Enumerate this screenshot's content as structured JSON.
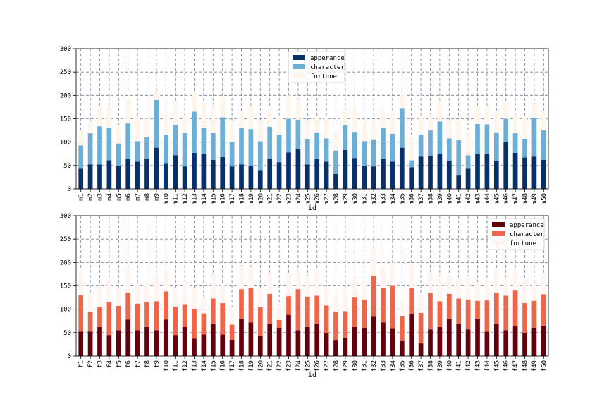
{
  "chart_data": [
    {
      "type": "bar",
      "stacked": true,
      "xlabel": "id",
      "ylim": [
        0,
        300
      ],
      "yticks": [
        0,
        50,
        100,
        150,
        200,
        250,
        300
      ],
      "grid": true,
      "legend_position": "top-center",
      "categories": [
        "m1",
        "m2",
        "m3",
        "m4",
        "m5",
        "m6",
        "m7",
        "m8",
        "m9",
        "m10",
        "m11",
        "m12",
        "m13",
        "m14",
        "m15",
        "m16",
        "m17",
        "m18",
        "m19",
        "m20",
        "m21",
        "m22",
        "m23",
        "m24",
        "m25",
        "m26",
        "m27",
        "m28",
        "m29",
        "m30",
        "m31",
        "m32",
        "m33",
        "m34",
        "m35",
        "m36",
        "m37",
        "m38",
        "m39",
        "m40",
        "m41",
        "m42",
        "m43",
        "m44",
        "m45",
        "m46",
        "m47",
        "m48",
        "m49",
        "m50"
      ],
      "series": [
        {
          "name": "apperance",
          "color": "#08306b",
          "values": [
            43,
            52,
            52,
            61,
            50,
            65,
            58,
            65,
            88,
            55,
            72,
            48,
            77,
            75,
            62,
            68,
            48,
            52,
            50,
            40,
            65,
            57,
            78,
            86,
            52,
            65,
            58,
            32,
            83,
            66,
            49,
            48,
            65,
            58,
            88,
            46,
            69,
            71,
            75,
            60,
            30,
            43,
            75,
            75,
            59,
            100,
            77,
            67,
            69,
            62
          ]
        },
        {
          "name": "character",
          "color": "#6baed6",
          "values": [
            50,
            67,
            82,
            70,
            47,
            75,
            44,
            45,
            102,
            61,
            65,
            72,
            88,
            55,
            58,
            85,
            53,
            78,
            78,
            62,
            68,
            59,
            72,
            62,
            55,
            56,
            50,
            50,
            53,
            56,
            53,
            58,
            65,
            60,
            85,
            15,
            47,
            54,
            69,
            48,
            74,
            29,
            64,
            63,
            62,
            50,
            42,
            40,
            83,
            63
          ]
        },
        {
          "name": "fortune",
          "color": "#fff5eb",
          "values": [
            30,
            25,
            45,
            40,
            35,
            50,
            55,
            40,
            20,
            45,
            50,
            35,
            40,
            55,
            60,
            45,
            40,
            35,
            50,
            45,
            40,
            35,
            50,
            45,
            40,
            35,
            45,
            40,
            35,
            50,
            45,
            40,
            35,
            45,
            30,
            50,
            40,
            35,
            45,
            40,
            45,
            50,
            35,
            40,
            45,
            35,
            40,
            45,
            30,
            40
          ]
        }
      ]
    },
    {
      "type": "bar",
      "stacked": true,
      "xlabel": "id",
      "ylim": [
        0,
        300
      ],
      "yticks": [
        0,
        50,
        100,
        150,
        200,
        250,
        300
      ],
      "grid": true,
      "legend_position": "top-right",
      "categories": [
        "f1",
        "f2",
        "f3",
        "f4",
        "f5",
        "f6",
        "f7",
        "f8",
        "f9",
        "f10",
        "f11",
        "f12",
        "f13",
        "f14",
        "f15",
        "f16",
        "f17",
        "f18",
        "f19",
        "f20",
        "f21",
        "f22",
        "f23",
        "f24",
        "f25",
        "f26",
        "f27",
        "f28",
        "f29",
        "f30",
        "f31",
        "f32",
        "f33",
        "f34",
        "f35",
        "f36",
        "f37",
        "f38",
        "f39",
        "f40",
        "f41",
        "f42",
        "f43",
        "f44",
        "f45",
        "f46",
        "f47",
        "f48",
        "f49",
        "f50"
      ],
      "series": [
        {
          "name": "apperance",
          "color": "#67000d",
          "values": [
            52,
            52,
            62,
            45,
            55,
            78,
            55,
            62,
            55,
            78,
            45,
            62,
            37,
            46,
            68,
            46,
            35,
            80,
            72,
            44,
            68,
            59,
            88,
            55,
            62,
            69,
            49,
            33,
            39,
            62,
            59,
            84,
            72,
            58,
            32,
            90,
            27,
            57,
            62,
            80,
            68,
            57,
            80,
            52,
            68,
            55,
            64,
            50,
            60,
            65
          ]
        },
        {
          "name": "character",
          "color": "#ef6548",
          "values": [
            78,
            43,
            43,
            70,
            52,
            58,
            57,
            54,
            62,
            60,
            60,
            49,
            64,
            45,
            55,
            67,
            32,
            63,
            73,
            60,
            65,
            18,
            40,
            88,
            65,
            60,
            59,
            62,
            57,
            63,
            62,
            88,
            73,
            92,
            53,
            55,
            65,
            78,
            55,
            53,
            55,
            64,
            38,
            67,
            67,
            74,
            76,
            63,
            58,
            67
          ]
        },
        {
          "name": "fortune",
          "color": "#fff5f0",
          "values": [
            55,
            40,
            45,
            50,
            40,
            50,
            45,
            40,
            55,
            45,
            40,
            50,
            45,
            35,
            55,
            40,
            35,
            50,
            45,
            40,
            45,
            35,
            50,
            40,
            45,
            55,
            40,
            35,
            50,
            45,
            40,
            60,
            45,
            50,
            35,
            50,
            40,
            45,
            55,
            40,
            45,
            50,
            40,
            45,
            50,
            40,
            45,
            50,
            40,
            45
          ]
        }
      ]
    }
  ]
}
